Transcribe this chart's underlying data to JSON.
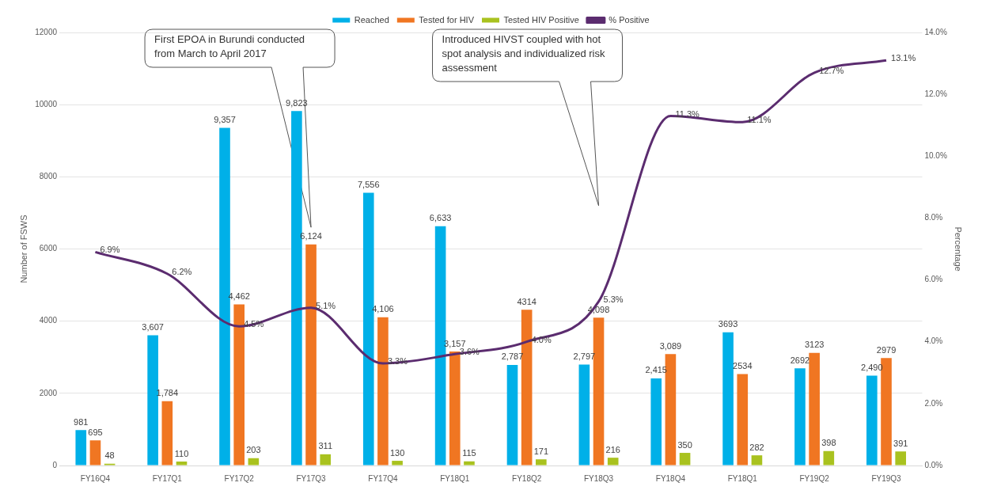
{
  "chart_data": {
    "type": "bar",
    "categories": [
      "FY16Q4",
      "FY17Q1",
      "FY17Q2",
      "FY17Q3",
      "FY17Q4",
      "FY18Q1",
      "FY18Q2",
      "FY18Q3",
      "FY18Q4",
      "FY18Q1",
      "FY19Q2",
      "FY19Q3"
    ],
    "series": [
      {
        "name": "Reached",
        "color": "#00b0e8",
        "values": [
          981,
          3607,
          9357,
          9823,
          7556,
          6633,
          2787,
          2797,
          2415,
          3693,
          2692,
          2490
        ],
        "value_labels": [
          "981",
          "3,607",
          "9,357",
          "9,823",
          "7,556",
          "6,633",
          "2,787",
          "2,797",
          "2,415",
          "3693",
          "2692",
          "2,490"
        ]
      },
      {
        "name": "Tested for HIV",
        "color": "#f07622",
        "values": [
          695,
          1784,
          4462,
          6124,
          4106,
          3157,
          4314,
          4098,
          3089,
          2534,
          3123,
          2979
        ],
        "value_labels": [
          "695",
          "1,784",
          "4,462",
          "6,124",
          "4,106",
          "3,157",
          "4314",
          "4,098",
          "3,089",
          "2534",
          "3123",
          "2979"
        ]
      },
      {
        "name": "Tested HIV Positive",
        "color": "#a9c21f",
        "values": [
          48,
          110,
          203,
          311,
          130,
          115,
          171,
          216,
          350,
          282,
          398,
          391
        ],
        "value_labels": [
          "48",
          "110",
          "203",
          "311",
          "130",
          "115",
          "171",
          "216",
          "350",
          "282",
          "398",
          "391"
        ]
      },
      {
        "name": "% Positive",
        "type": "line",
        "axis": "y2",
        "color": "#5b2c6f",
        "values": [
          6.9,
          6.2,
          4.5,
          5.1,
          3.3,
          3.6,
          4.0,
          5.3,
          11.3,
          11.1,
          12.7,
          13.1
        ],
        "value_labels": [
          "6.9%",
          "6.2%",
          "4.5%",
          "5.1%",
          "3.3%",
          "3.6%",
          "4.0%",
          "5.3%",
          "11.3%",
          "11.1%",
          "12.7%",
          "13.1%"
        ]
      }
    ],
    "ylabel": "Number of FSWS",
    "y2label": "Percentage",
    "ylim": [
      0,
      12000
    ],
    "yticks": [
      0,
      2000,
      4000,
      6000,
      8000,
      10000,
      12000
    ],
    "y2lim": [
      0,
      14
    ],
    "y2ticks": [
      {
        "value": 0,
        "label": "0.0%"
      },
      {
        "value": 2,
        "label": "2.0%"
      },
      {
        "value": 4,
        "label": "4.0%"
      },
      {
        "value": 6,
        "label": "6.0%"
      },
      {
        "value": 8,
        "label": "8.0%"
      },
      {
        "value": 10,
        "label": "10.0%"
      },
      {
        "value": 12,
        "label": "12.0%"
      },
      {
        "value": 14,
        "label": "14.0%"
      }
    ],
    "annotations": [
      "First EPOA in Burundi conducted from March to April 2017",
      "Introduced HIVST coupled with hot spot analysis and individualized risk assessment"
    ],
    "grid": "y",
    "legend": "top",
    "marker": "none",
    "line_style": "solid"
  }
}
